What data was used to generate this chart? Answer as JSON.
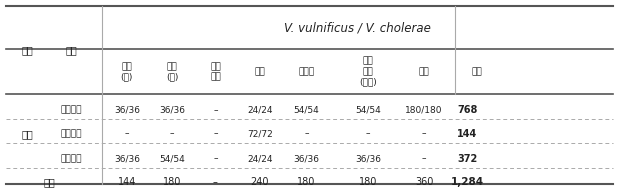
{
  "title": "V. vulnificus / V. cholerae",
  "col_headers": [
    "넓치\n(회)",
    "전어\n(회)",
    "우렁\n엘이",
    "생굴",
    "산낙지",
    "간장\n게장\n(꽃게)",
    "해수",
    "총계"
  ],
  "row_header1": [
    "서해",
    "",
    ""
  ],
  "row_header2": [
    "생산단계",
    "가공단계",
    "유통단계"
  ],
  "rows": [
    [
      "36/36",
      "36/36",
      "–",
      "24/24",
      "54/54",
      "54/54",
      "180/180",
      "768"
    ],
    [
      "–",
      "–",
      "–",
      "72/72",
      "–",
      "–",
      "–",
      "144"
    ],
    [
      "36/36",
      "54/54",
      "–",
      "24/24",
      "36/36",
      "36/36",
      "–",
      "372"
    ]
  ],
  "total_row": [
    "144",
    "180",
    "–",
    "240",
    "180",
    "180",
    "360",
    "1,284"
  ],
  "left_col1": "권역",
  "left_col2": "시료",
  "total_label": "총계",
  "region_label": "서해",
  "background": "#ffffff",
  "header_bg": "#ffffff",
  "line_color": "#aaaaaa",
  "bold_line_color": "#555555",
  "text_color": "#222222",
  "total_bold": true
}
